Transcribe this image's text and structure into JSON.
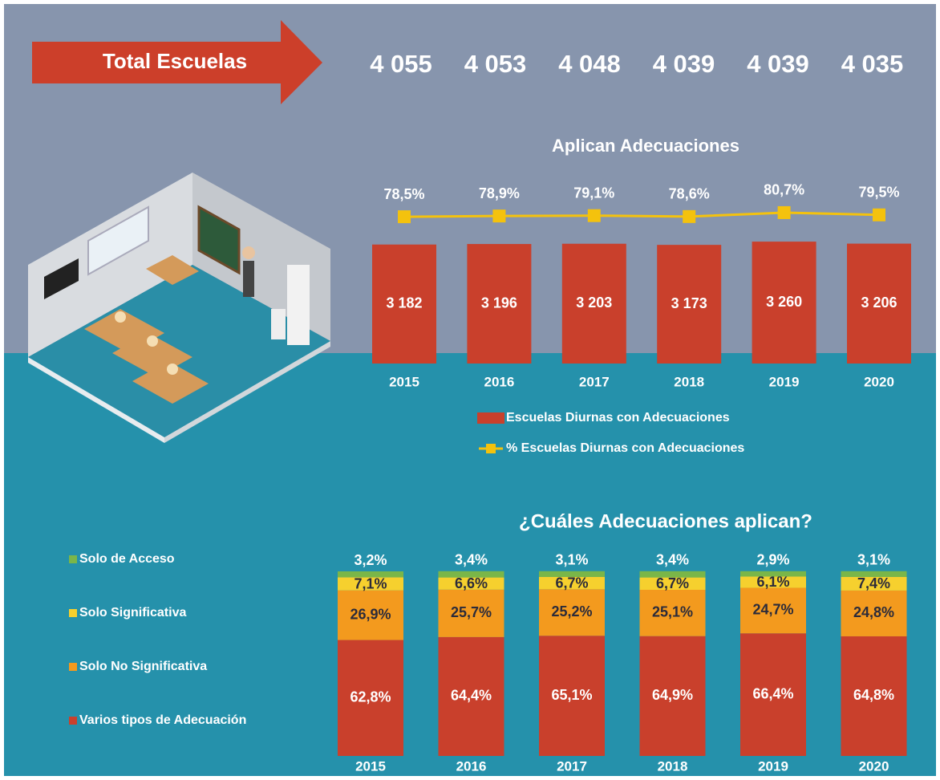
{
  "header": {
    "label": "Total Escuelas",
    "totals": [
      "4 055",
      "4 053",
      "4 048",
      "4 039",
      "4 039",
      "4 035"
    ]
  },
  "chart_data": [
    {
      "type": "bar",
      "title": "Aplican Adecuaciones",
      "categories": [
        "2015",
        "2016",
        "2017",
        "2018",
        "2019",
        "2020"
      ],
      "series": [
        {
          "name": "Escuelas Diurnas con Adecuaciones",
          "color": "#c9402c",
          "values": [
            3182,
            3196,
            3203,
            3173,
            3260,
            3206
          ],
          "value_labels": [
            "3 182",
            "3 196",
            "3 203",
            "3 173",
            "3 260",
            "3 206"
          ]
        },
        {
          "name": "% Escuelas Diurnas con Adecuaciones",
          "color": "#f4c20d",
          "type": "line",
          "axis": "y2",
          "values": [
            78.5,
            78.9,
            79.1,
            78.6,
            80.7,
            79.5
          ],
          "value_labels": [
            "78,5%",
            "78,9%",
            "79,1%",
            "78,6%",
            "80,7%",
            "79,5%"
          ]
        }
      ],
      "ylim": [
        0,
        5000
      ],
      "y2lim": [
        0,
        100
      ],
      "grid": false,
      "legend": "bottom"
    },
    {
      "type": "stacked_bar",
      "title": "¿Cuáles Adecuaciones aplican?",
      "categories": [
        "2015",
        "2016",
        "2017",
        "2018",
        "2019",
        "2020"
      ],
      "series": [
        {
          "name": "Varios tipos de Adecuación",
          "color": "#c9402c",
          "values": [
            62.8,
            64.4,
            65.1,
            64.9,
            66.4,
            64.8
          ],
          "value_labels": [
            "62,8%",
            "64,4%",
            "65,1%",
            "64,9%",
            "66,4%",
            "64,8%"
          ]
        },
        {
          "name": "Solo No Significativa",
          "color": "#f39a1e",
          "values": [
            26.9,
            25.7,
            25.2,
            25.1,
            24.7,
            24.8
          ],
          "value_labels": [
            "26,9%",
            "25,7%",
            "25,2%",
            "25,1%",
            "24,7%",
            "24,8%"
          ]
        },
        {
          "name": "Solo Significativa",
          "color": "#f6d02e",
          "values": [
            7.1,
            6.6,
            6.7,
            6.7,
            6.1,
            7.4
          ],
          "value_labels": [
            "7,1%",
            "6,6%",
            "6,7%",
            "6,7%",
            "6,1%",
            "7,4%"
          ]
        },
        {
          "name": "Solo de Acceso",
          "color": "#7ab648",
          "values": [
            3.2,
            3.4,
            3.1,
            3.4,
            2.9,
            3.1
          ],
          "value_labels": [
            "3,2%",
            "3,4%",
            "3,1%",
            "3,4%",
            "2,9%",
            "3,1%"
          ]
        }
      ],
      "ylim": [
        0,
        100
      ],
      "grid": false,
      "legend": "left"
    }
  ]
}
